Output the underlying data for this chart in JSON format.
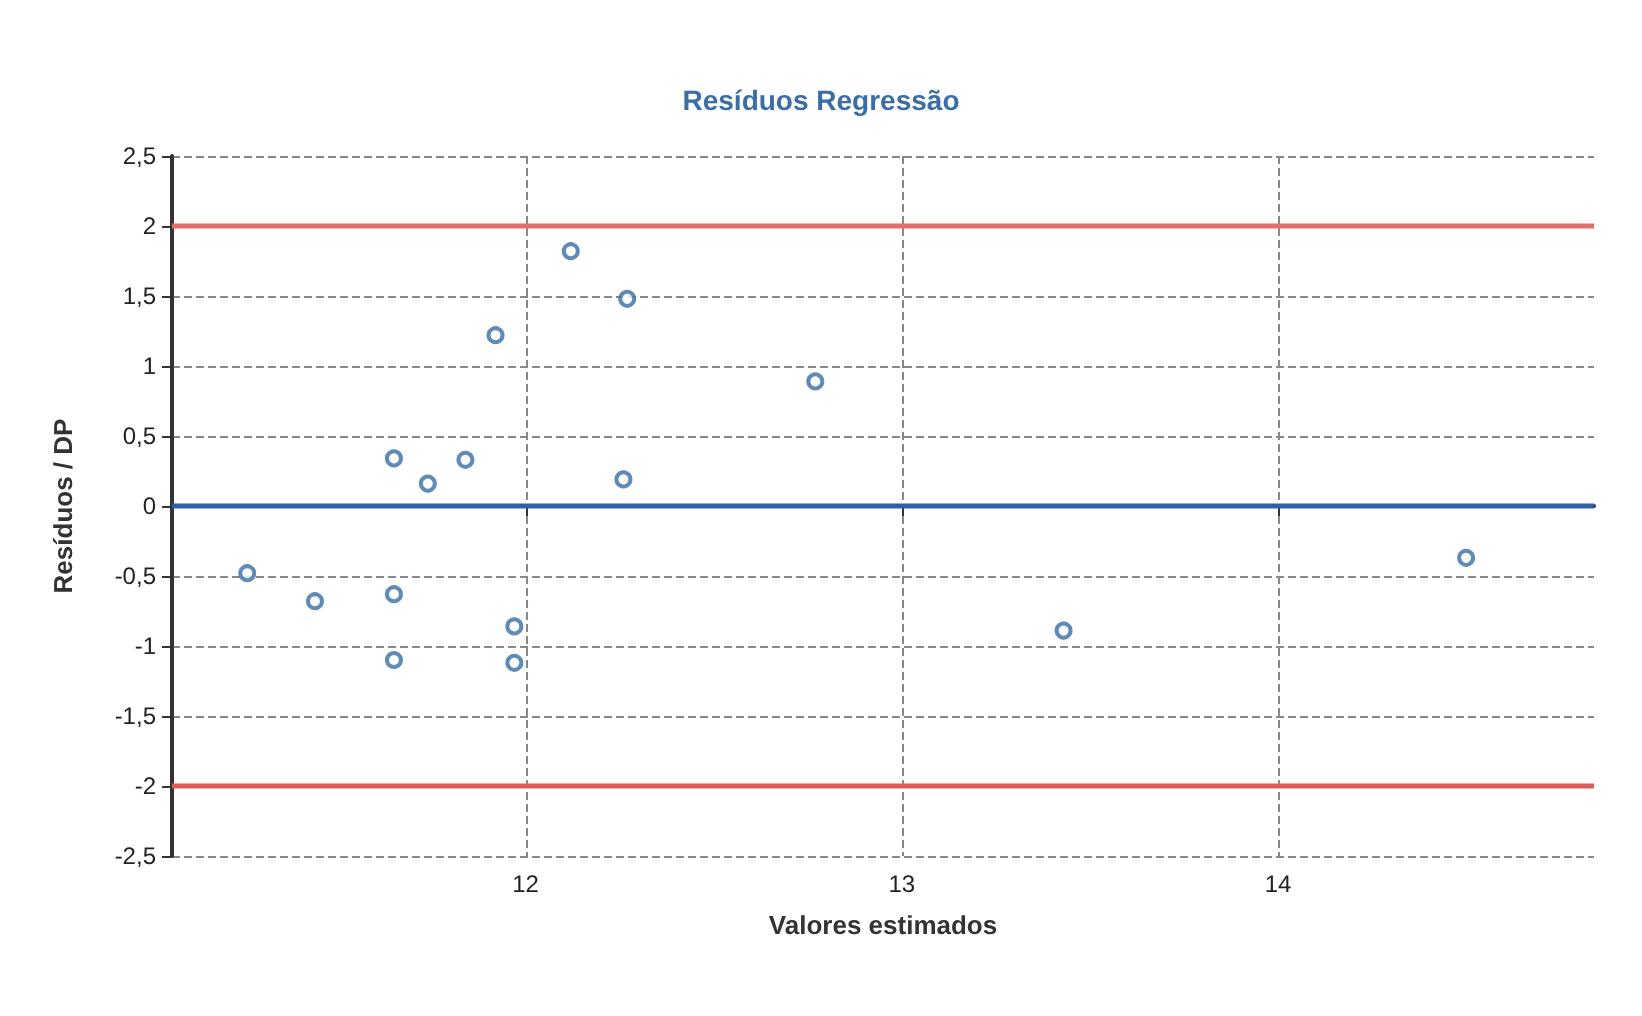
{
  "chart_data": {
    "type": "scatter",
    "title": "Resíduos Regressão",
    "xlabel": "Valores estimados",
    "ylabel": "Resíduos / DP",
    "x": [
      11.26,
      11.44,
      11.65,
      11.65,
      11.65,
      11.74,
      11.84,
      11.92,
      11.97,
      11.97,
      12.12,
      12.27,
      12.26,
      12.77,
      13.43,
      14.5
    ],
    "series": [
      {
        "color": "#3a6ea5",
        "values": [
          -0.48,
          -0.68,
          0.34,
          -0.63,
          -1.1,
          0.16,
          0.33,
          1.22,
          -0.86,
          -1.12,
          1.82,
          1.48,
          0.19,
          0.89,
          -0.89,
          -0.37
        ]
      }
    ],
    "xlim": [
      11.06,
      14.84
    ],
    "xticks": [
      12,
      13,
      14
    ],
    "ylim": [
      -2.5,
      2.5
    ],
    "yticks": [
      {
        "value": -2.5,
        "label": "-2,5"
      },
      -2,
      {
        "value": -1.5,
        "label": "-1,5"
      },
      -1,
      {
        "value": -0.5,
        "label": "-0,5"
      },
      0,
      {
        "value": 0.5,
        "label": "0,5"
      },
      1,
      {
        "value": 1.5,
        "label": "1,5"
      },
      2,
      {
        "value": 2.5,
        "label": "2,5"
      }
    ],
    "ref_lines": [
      {
        "axis": "y",
        "value": 2,
        "color": "#e36c6c"
      },
      {
        "axis": "y",
        "value": 0,
        "color": "#2e5fa8"
      },
      {
        "axis": "y",
        "value": -2,
        "color": "#dc5a5a"
      }
    ],
    "grid": true,
    "marker": "circle"
  }
}
